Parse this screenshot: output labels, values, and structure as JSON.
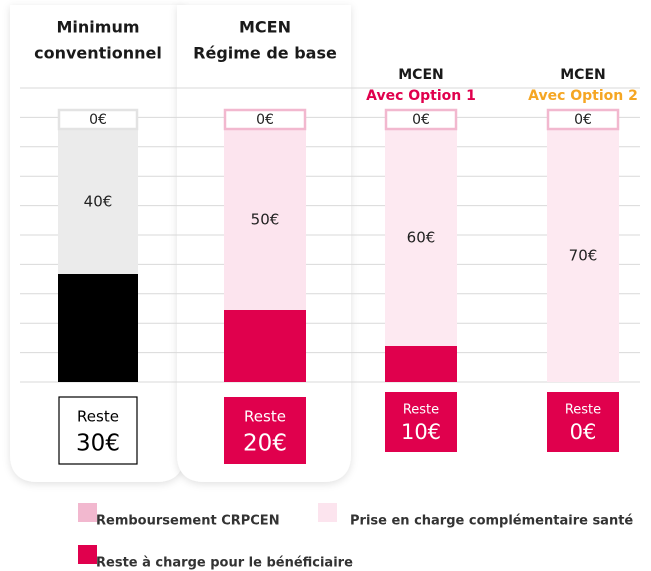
{
  "chart_data": {
    "type": "bar",
    "stacked": true,
    "categories": [
      [
        "Minimum",
        "conventionnel"
      ],
      [
        "MCEN",
        "Régime de base"
      ],
      [
        "MCEN",
        "Avec Option 1"
      ],
      [
        "MCEN",
        "Avec Option 2"
      ]
    ],
    "category_label_colors": [
      [
        "#1a1a1a",
        "#1a1a1a"
      ],
      [
        "#1a1a1a",
        "#1a1a1a"
      ],
      [
        "#1a1a1a",
        "#e0004d"
      ],
      [
        "#1a1a1a",
        "#f5a623"
      ]
    ],
    "highlighted_categories": [
      true,
      true,
      false,
      false
    ],
    "ylim": [
      0,
      70
    ],
    "reste_label": "Reste",
    "reste_outlined": [
      true,
      false,
      false,
      false
    ],
    "series": [
      {
        "name": "Remboursement CRPCEN",
        "color": "#f2b8cf",
        "colors": [
          "#e3e3e3",
          "#f2b8cf",
          "#f2b8cf",
          "#f2b8cf"
        ],
        "values": [
          0,
          0,
          0,
          0
        ],
        "value_labels": [
          "0€",
          "0€",
          "0€",
          "0€"
        ]
      },
      {
        "name": "Prise en charge complémentaire santé",
        "color": "#fce4ee",
        "colors": [
          "#ebebeb",
          "#fce4ee",
          "#fde9f1",
          "#fde9f1"
        ],
        "values": [
          40,
          50,
          60,
          70
        ],
        "value_labels": [
          "40€",
          "50€",
          "60€",
          "70€"
        ]
      },
      {
        "name": "Reste à charge pour le bénéficiaire",
        "color": "#e0004d",
        "colors": [
          "#000000",
          "#e0004d",
          "#e0004d",
          "#e0004d"
        ],
        "values": [
          30,
          20,
          10,
          0
        ],
        "value_labels": [
          "30€",
          "20€",
          "10€",
          "0€"
        ]
      }
    ]
  }
}
